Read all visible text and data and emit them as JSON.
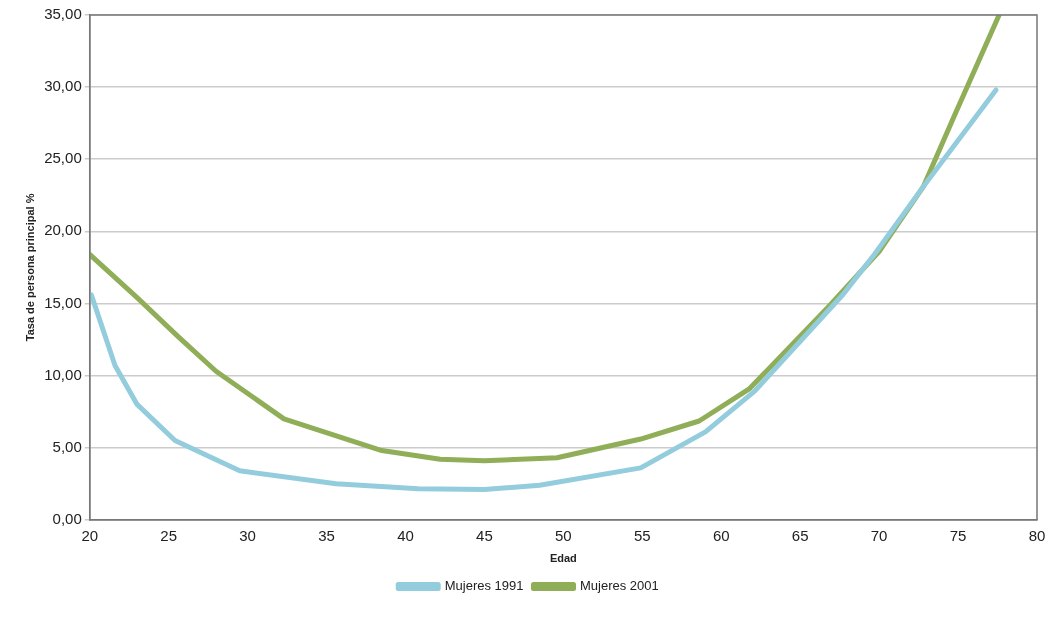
{
  "chart_data": {
    "type": "line",
    "xlabel": "Edad",
    "ylabel": "Tasa de persona principal %",
    "xlim": [
      20,
      80
    ],
    "xticks": [
      20,
      25,
      30,
      35,
      40,
      45,
      50,
      55,
      60,
      65,
      70,
      75,
      80
    ],
    "ylim": [
      0,
      35
    ],
    "yticks": [
      {
        "value": 0,
        "label": "0,00"
      },
      {
        "value": 5,
        "label": "5,00"
      },
      {
        "value": 10,
        "label": "10,00"
      },
      {
        "value": 15,
        "label": "15,00"
      },
      {
        "value": 20,
        "label": "20,00"
      },
      {
        "value": 25,
        "label": "25,00"
      },
      {
        "value": 30,
        "label": "30,00"
      },
      {
        "value": 35,
        "label": "35,00"
      }
    ],
    "grid": "y",
    "legend": "bottom",
    "marker": "none",
    "line_style": "solid",
    "series": [
      {
        "name": "Mujeres 1991",
        "color": "#93cddd",
        "x": [
          20.1,
          21.6,
          23,
          25.4,
          29.5,
          35.6,
          40.8,
          45,
          48.5,
          54.9,
          59,
          62.1,
          67.7,
          69.7,
          72.8,
          77.4
        ],
        "values": [
          15.6,
          10.7,
          8.0,
          5.5,
          3.4,
          2.5,
          2.15,
          2.1,
          2.4,
          3.6,
          6.1,
          8.9,
          15.6,
          18.4,
          23.1,
          29.8
        ]
      },
      {
        "name": "Mujeres 2001",
        "color": "#8fae57",
        "x": [
          20,
          23,
          25.6,
          28,
          32.3,
          38.5,
          42.2,
          45,
          49.6,
          54.9,
          58.6,
          61.8,
          66.9,
          70,
          72.8,
          74.8,
          77.6
        ],
        "values": [
          18.4,
          15.4,
          12.7,
          10.3,
          7.0,
          4.8,
          4.2,
          4.1,
          4.3,
          5.6,
          6.85,
          9.1,
          14.9,
          18.6,
          23.1,
          28.1,
          35
        ]
      }
    ]
  }
}
